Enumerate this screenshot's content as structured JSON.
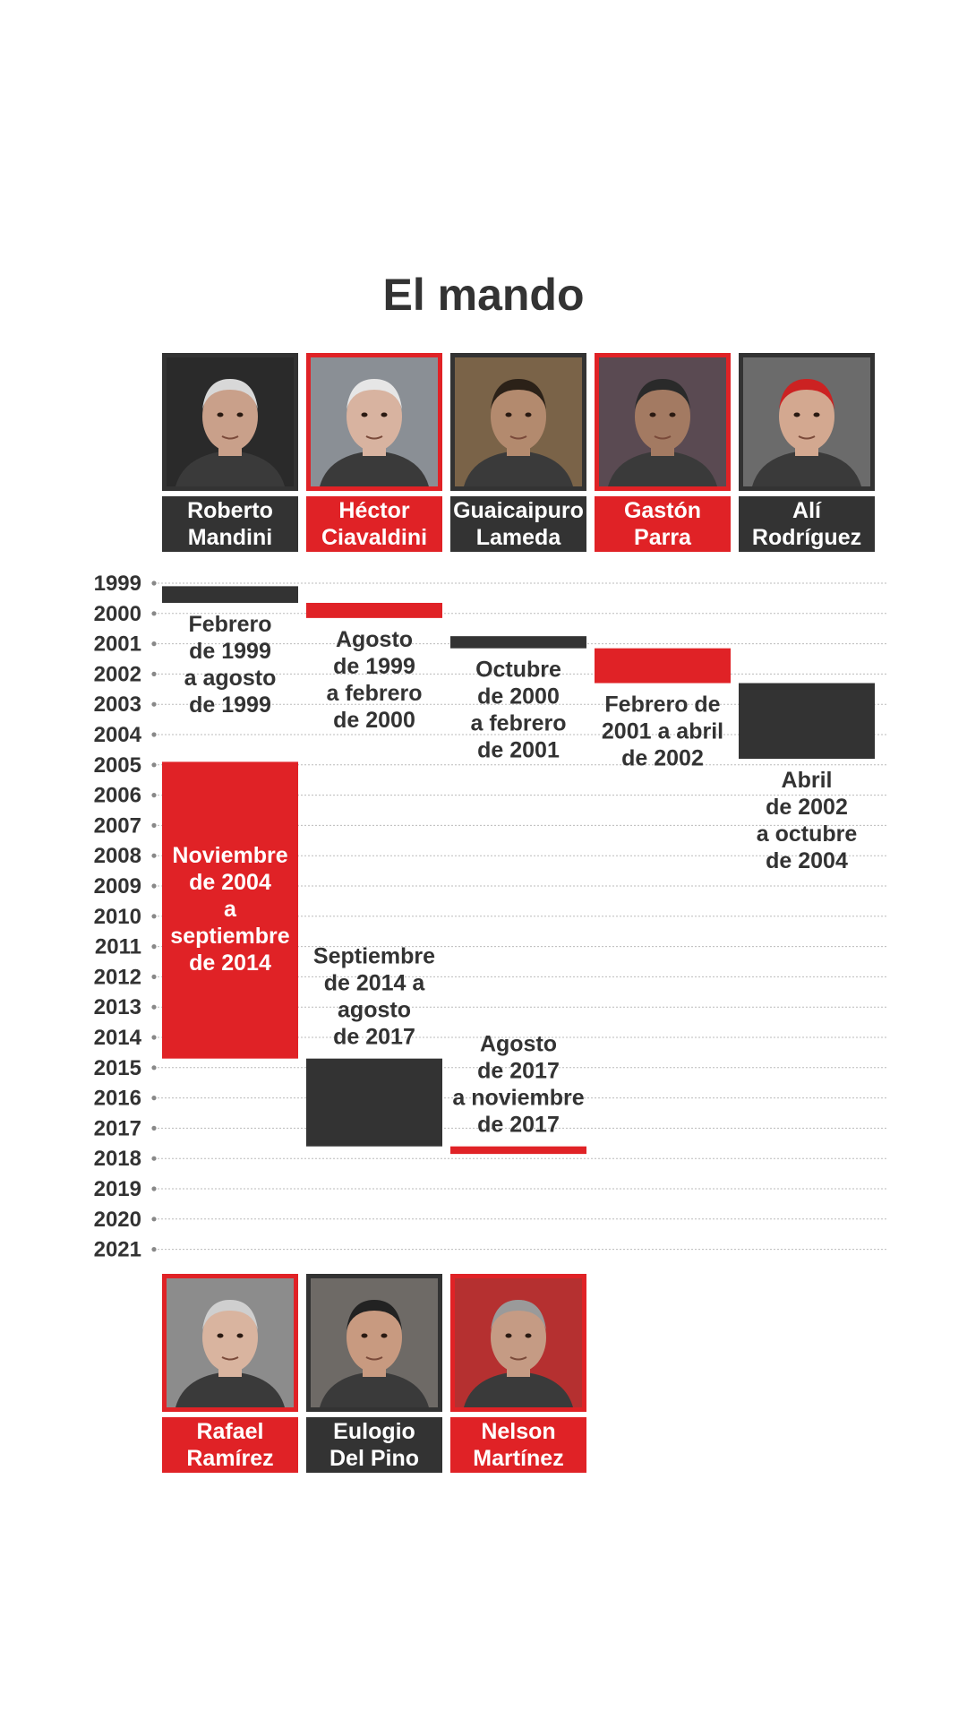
{
  "title": "El mando",
  "colors": {
    "red": "#e02226",
    "dark": "#333333",
    "grid": "#bbbbbb"
  },
  "people": [
    {
      "first": "Roberto",
      "last": "Mandini",
      "color": "dark",
      "photo": "portrait-roberto-mandini"
    },
    {
      "first": "Héctor",
      "last": "Ciavaldini",
      "color": "red",
      "photo": "portrait-hector-ciavaldini"
    },
    {
      "first": "Guaicaipuro",
      "last": "Lameda",
      "color": "dark",
      "photo": "portrait-guaicaipuro-lameda"
    },
    {
      "first": "Gastón",
      "last": "Parra",
      "color": "red",
      "photo": "portrait-gaston-parra"
    },
    {
      "first": "Alí",
      "last": "Rodríguez",
      "color": "dark",
      "photo": "portrait-ali-rodriguez"
    },
    {
      "first": "Rafael",
      "last": "Ramírez",
      "color": "red",
      "photo": "portrait-rafael-ramirez"
    },
    {
      "first": "Eulogio",
      "last": "Del Pino",
      "color": "dark",
      "photo": "portrait-eulogio-del-pino"
    },
    {
      "first": "Nelson",
      "last": "Martínez",
      "color": "red",
      "photo": "portrait-nelson-martinez"
    }
  ],
  "chart_data": {
    "type": "bar",
    "orientation": "vertical-timeline",
    "y_axis_ticks": [
      1999,
      2000,
      2001,
      2002,
      2003,
      2004,
      2005,
      2006,
      2007,
      2008,
      2009,
      2010,
      2011,
      2012,
      2013,
      2014,
      2015,
      2016,
      2017,
      2018,
      2019,
      2020,
      2021
    ],
    "ylim": [
      1999,
      2021
    ],
    "grid": true,
    "series": [
      {
        "name": "Roberto Mandini",
        "column": 0,
        "start": 1999.1,
        "end": 1999.65,
        "color": "dark",
        "label": [
          "Febrero",
          "de 1999",
          "a agosto",
          "de 1999"
        ],
        "label_position": "below"
      },
      {
        "name": "Héctor Ciavaldini",
        "column": 1,
        "start": 1999.65,
        "end": 2000.15,
        "color": "red",
        "label": [
          "Agosto",
          "de 1999",
          "a febrero",
          "de 2000"
        ],
        "label_position": "below"
      },
      {
        "name": "Guaicaipuro Lameda",
        "column": 2,
        "start": 2000.75,
        "end": 2001.15,
        "color": "dark",
        "label": [
          "Octubre",
          "de 2000",
          "a febrero",
          "de 2001"
        ],
        "label_position": "below"
      },
      {
        "name": "Gastón Parra",
        "column": 3,
        "start": 2001.15,
        "end": 2002.3,
        "color": "red",
        "label": [
          "Febrero de",
          "2001 a abril",
          "de 2002"
        ],
        "label_position": "below"
      },
      {
        "name": "Alí Rodríguez",
        "column": 4,
        "start": 2002.3,
        "end": 2004.8,
        "color": "dark",
        "label": [
          "Abril",
          "de 2002",
          "a octubre",
          "de 2004"
        ],
        "label_position": "below"
      },
      {
        "name": "Rafael Ramírez",
        "column": 0,
        "start": 2004.9,
        "end": 2014.7,
        "color": "red",
        "label": [
          "Noviembre",
          "de 2004",
          "a",
          "septiembre",
          "de 2014"
        ],
        "label_position": "inside"
      },
      {
        "name": "Eulogio Del Pino",
        "column": 1,
        "start": 2014.7,
        "end": 2017.6,
        "color": "dark",
        "label": [
          "Septiembre",
          "de 2014 a",
          "agosto",
          "de 2017"
        ],
        "label_position": "above"
      },
      {
        "name": "Nelson Martínez",
        "column": 2,
        "start": 2017.6,
        "end": 2017.85,
        "color": "red",
        "label": [
          "Agosto",
          "de 2017",
          "a noviembre",
          "de 2017"
        ],
        "label_position": "above"
      }
    ]
  }
}
